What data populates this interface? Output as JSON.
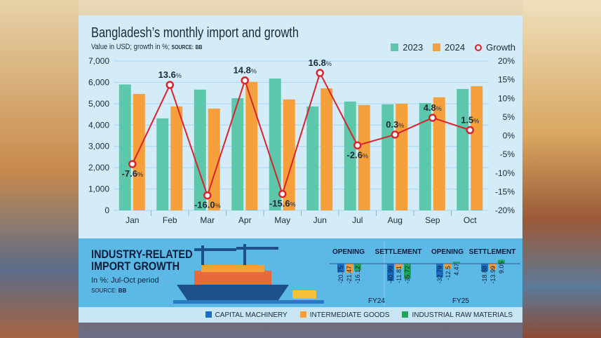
{
  "header": {
    "title": "Bangladesh’s monthly import and growth",
    "subtitle": "Value in USD; growth in %;",
    "source_label": "SOURCE:",
    "source": "BB"
  },
  "colors": {
    "y2023": "#5cc7ab",
    "y2024": "#f5a03a",
    "growth": "#d9232e",
    "capital": "#1d6fc4",
    "intermediate": "#f5a03a",
    "raw": "#1ea65a"
  },
  "chart_data": [
    {
      "type": "bar",
      "title": "Bangladesh’s monthly import and growth",
      "categories": [
        "Jan",
        "Feb",
        "Mar",
        "Apr",
        "May",
        "Jun",
        "Jul",
        "Aug",
        "Sep",
        "Oct"
      ],
      "ylim": [
        0,
        7000
      ],
      "yticks": [
        "0",
        "1,000",
        "2,000",
        "3,000",
        "4,000",
        "5,000",
        "6,000",
        "7,000"
      ],
      "y2lim": [
        -20,
        20
      ],
      "y2ticks": [
        "-20%",
        "-15%",
        "-10%",
        "-5%",
        "0%",
        "5%",
        "10%",
        "15%",
        "20%"
      ],
      "grid": true,
      "legend": "top-right",
      "series": [
        {
          "name": "2023",
          "values": [
            5900,
            4310,
            5660,
            5260,
            6180,
            4870,
            5100,
            4970,
            5030,
            5690
          ]
        },
        {
          "name": "2024",
          "values": [
            5460,
            4870,
            4770,
            6020,
            5200,
            5720,
            4940,
            5000,
            5300,
            5820
          ]
        },
        {
          "name": "Growth",
          "axis": "right",
          "type": "line",
          "values": [
            -7.6,
            13.6,
            -16.0,
            14.8,
            -15.6,
            16.8,
            -2.6,
            0.3,
            4.8,
            1.5
          ],
          "labels": [
            "-7.6",
            "13.6",
            "-16.0",
            "14.8",
            "-15.6",
            "16.8",
            "-2.6",
            "0.3",
            "4.8",
            "1.5"
          ]
        }
      ]
    },
    {
      "type": "bar",
      "title": "INDUSTRY-RELATED IMPORT GROWTH",
      "subtitle": "In %: Jul-Oct period",
      "source": "BB",
      "groups": [
        "FY24",
        "FY25"
      ],
      "categories": [
        "OPENING",
        "SETTLEMENT",
        "OPENING",
        "SETTLEMENT"
      ],
      "series": [
        {
          "name": "CAPITAL MACHINERY",
          "values": [
            -20.75,
            -40.99,
            -32.79,
            -18.88
          ],
          "labels": [
            "-20.75",
            "-40.99",
            "-32.79",
            "-18.88"
          ]
        },
        {
          "name": "INTERMEDIATE GOODS",
          "values": [
            -21.47,
            -11.81,
            -12.5,
            -13.99
          ],
          "labels": [
            "-21.47",
            "-11.81",
            "-12.5",
            "-13.99"
          ]
        },
        {
          "name": "INDUSTRIAL RAW MATERIALS",
          "values": [
            -16.12,
            -35.72,
            4.47,
            9.05
          ],
          "labels": [
            "-16.12",
            "-35.72",
            "4.47",
            "9.05"
          ]
        }
      ]
    }
  ]
}
